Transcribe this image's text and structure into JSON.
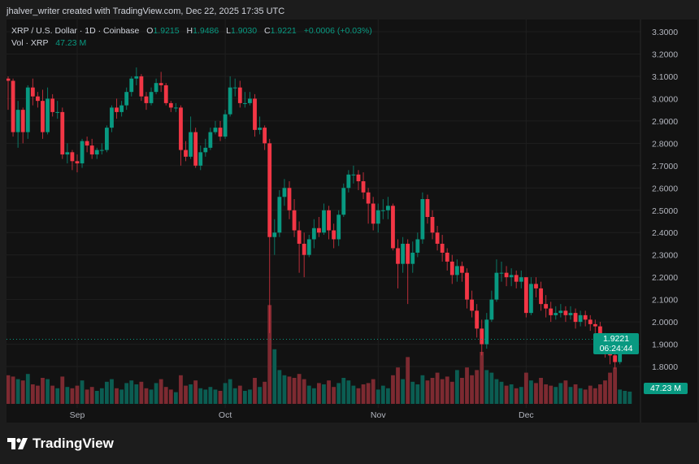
{
  "credit": "jhalver_writer created with TradingView.com, Dec 22, 2025 17:35 UTC",
  "legend": {
    "symbol": "XRP / U.S. Dollar · 1D · Coinbase",
    "o_label": "O",
    "o": "1.9215",
    "h_label": "H",
    "h": "1.9486",
    "l_label": "L",
    "l": "1.9030",
    "c_label": "C",
    "c": "1.9221",
    "change": "+0.0006 (+0.03%)",
    "vol_label": "Vol · XRP",
    "vol": "47.23 M"
  },
  "price_tag": {
    "price": "1.9221",
    "countdown": "06:24:44"
  },
  "volume_tag": "47.23 M",
  "brand": "TradingView",
  "colors": {
    "up": "#089981",
    "down": "#f23645",
    "background": "#121212"
  },
  "chart_data": {
    "type": "candlestick",
    "title": "XRP / U.S. Dollar · 1D · Coinbase",
    "ylim": [
      1.75,
      3.35
    ],
    "y_ticks": [
      "3.3000",
      "3.2000",
      "3.1000",
      "3.0000",
      "2.9000",
      "2.8000",
      "2.7000",
      "2.6000",
      "2.5000",
      "2.4000",
      "2.3000",
      "2.2000",
      "2.1000",
      "2.0000",
      "1.9000",
      "1.8000"
    ],
    "x_ticks": [
      {
        "label": "Sep",
        "index": 14
      },
      {
        "label": "Oct",
        "index": 44
      },
      {
        "label": "Nov",
        "index": 75
      },
      {
        "label": "Dec",
        "index": 105
      }
    ],
    "grid": true,
    "first_open": 3.09,
    "close": [
      3.08,
      2.85,
      2.95,
      2.85,
      3.05,
      3.01,
      2.99,
      2.85,
      3.0,
      2.94,
      2.94,
      2.75,
      2.76,
      2.72,
      2.71,
      2.81,
      2.79,
      2.75,
      2.77,
      2.77,
      2.87,
      2.96,
      2.94,
      2.97,
      3.03,
      3.09,
      3.1,
      3.01,
      2.98,
      3.03,
      3.07,
      3.06,
      2.98,
      2.96,
      2.96,
      2.77,
      2.74,
      2.85,
      2.7,
      2.76,
      2.78,
      2.85,
      2.87,
      2.83,
      2.93,
      3.05,
      3.05,
      2.98,
      2.98,
      3.0,
      2.86,
      2.87,
      2.8,
      2.38,
      2.4,
      2.56,
      2.6,
      2.5,
      2.41,
      2.35,
      2.3,
      2.37,
      2.42,
      2.4,
      2.5,
      2.41,
      2.37,
      2.48,
      2.6,
      2.66,
      2.66,
      2.63,
      2.58,
      2.53,
      2.44,
      2.5,
      2.5,
      2.52,
      2.33,
      2.26,
      2.35,
      2.26,
      2.31,
      2.37,
      2.55,
      2.47,
      2.4,
      2.35,
      2.31,
      2.27,
      2.21,
      2.25,
      2.22,
      2.1,
      2.05,
      1.97,
      1.9,
      2.01,
      2.1,
      2.22,
      2.22,
      2.2,
      2.21,
      2.18,
      2.2,
      2.04,
      2.17,
      2.15,
      2.08,
      2.06,
      2.03,
      2.04,
      2.05,
      2.03,
      2.04,
      2.0,
      2.03,
      2.01,
      1.99,
      1.98,
      1.93,
      1.87,
      1.85,
      1.82,
      1.9,
      1.92,
      1.9221
    ],
    "high": [
      3.1,
      3.09,
      2.99,
      2.96,
      3.06,
      3.09,
      3.03,
      3.04,
      3.05,
      3.02,
      2.99,
      2.96,
      2.8,
      2.77,
      2.75,
      2.82,
      2.83,
      2.82,
      2.78,
      2.8,
      2.88,
      2.97,
      3.0,
      2.99,
      3.05,
      3.1,
      3.14,
      3.11,
      3.03,
      3.05,
      3.09,
      3.12,
      3.07,
      2.99,
      2.98,
      2.97,
      2.81,
      2.92,
      2.87,
      2.79,
      2.82,
      2.87,
      2.9,
      2.9,
      2.95,
      3.1,
      3.09,
      3.08,
      3.03,
      3.03,
      3.02,
      2.92,
      2.88,
      2.82,
      2.46,
      2.59,
      2.64,
      2.63,
      2.55,
      2.45,
      2.4,
      2.39,
      2.46,
      2.47,
      2.53,
      2.52,
      2.44,
      2.5,
      2.62,
      2.68,
      2.7,
      2.68,
      2.67,
      2.6,
      2.56,
      2.53,
      2.55,
      2.56,
      2.53,
      2.37,
      2.38,
      2.37,
      2.36,
      2.4,
      2.58,
      2.57,
      2.5,
      2.43,
      2.39,
      2.33,
      2.3,
      2.28,
      2.27,
      2.24,
      2.14,
      2.08,
      2.01,
      2.04,
      2.14,
      2.28,
      2.27,
      2.25,
      2.24,
      2.23,
      2.23,
      2.2,
      2.2,
      2.2,
      2.18,
      2.12,
      2.09,
      2.07,
      2.08,
      2.07,
      2.07,
      2.06,
      2.05,
      2.05,
      2.03,
      2.01,
      2.0,
      1.95,
      1.91,
      1.88,
      1.93,
      1.95,
      1.9486
    ],
    "low": [
      2.95,
      2.83,
      2.78,
      2.8,
      2.82,
      2.97,
      2.96,
      2.82,
      2.84,
      2.92,
      2.91,
      2.73,
      2.71,
      2.68,
      2.67,
      2.69,
      2.76,
      2.73,
      2.73,
      2.75,
      2.76,
      2.85,
      2.91,
      2.92,
      2.95,
      3.01,
      3.06,
      2.99,
      2.95,
      2.97,
      3.02,
      3.03,
      2.97,
      2.94,
      2.94,
      2.7,
      2.72,
      2.73,
      2.69,
      2.68,
      2.74,
      2.77,
      2.84,
      2.81,
      2.82,
      2.92,
      3.01,
      2.96,
      2.96,
      2.97,
      2.83,
      2.84,
      2.77,
      1.95,
      2.3,
      2.38,
      2.52,
      2.46,
      2.38,
      2.22,
      2.2,
      2.29,
      2.33,
      2.38,
      2.39,
      2.37,
      2.33,
      2.34,
      2.47,
      2.58,
      2.62,
      2.59,
      2.55,
      2.44,
      2.41,
      2.4,
      2.46,
      2.46,
      2.32,
      2.15,
      2.22,
      2.08,
      2.22,
      2.29,
      2.35,
      2.44,
      2.37,
      2.32,
      2.27,
      2.23,
      2.17,
      2.18,
      2.18,
      2.06,
      2.02,
      1.93,
      1.85,
      1.88,
      2.0,
      2.09,
      2.18,
      2.16,
      2.16,
      2.15,
      2.15,
      2.02,
      2.03,
      2.11,
      2.05,
      2.02,
      2.0,
      2.01,
      2.02,
      2.0,
      2.01,
      1.97,
      1.98,
      1.98,
      1.96,
      1.95,
      1.89,
      1.84,
      1.81,
      1.79,
      1.81,
      1.88,
      1.903
    ],
    "volume_unit": "M",
    "volume": [
      110,
      105,
      95,
      90,
      115,
      75,
      70,
      100,
      95,
      70,
      60,
      105,
      65,
      60,
      70,
      90,
      55,
      65,
      50,
      60,
      85,
      95,
      60,
      55,
      80,
      90,
      75,
      85,
      60,
      55,
      80,
      95,
      65,
      55,
      45,
      110,
      70,
      75,
      90,
      60,
      55,
      65,
      55,
      50,
      80,
      95,
      60,
      70,
      50,
      55,
      100,
      65,
      85,
      380,
      210,
      130,
      110,
      105,
      100,
      115,
      95,
      70,
      60,
      80,
      75,
      90,
      65,
      80,
      100,
      90,
      70,
      60,
      75,
      80,
      95,
      55,
      70,
      60,
      110,
      140,
      95,
      180,
      85,
      75,
      110,
      90,
      100,
      120,
      95,
      105,
      85,
      130,
      100,
      140,
      110,
      130,
      200,
      130,
      120,
      95,
      85,
      70,
      75,
      60,
      65,
      120,
      90,
      80,
      100,
      75,
      70,
      65,
      80,
      90,
      65,
      75,
      60,
      55,
      70,
      60,
      75,
      90,
      120,
      140,
      55,
      50,
      47.23
    ]
  }
}
